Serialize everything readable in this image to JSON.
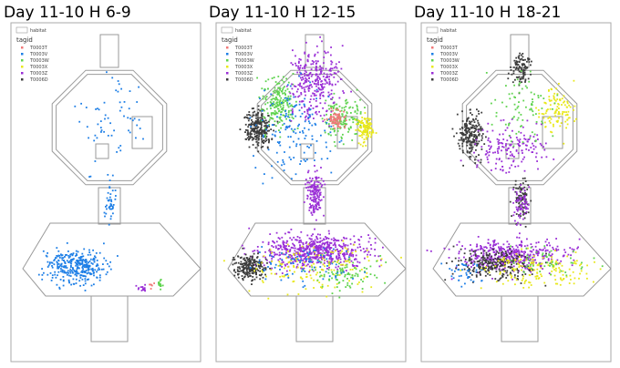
{
  "panels": [
    {
      "title": "Day 11-10 H 6-9"
    },
    {
      "title": "Day 11-10 H 12-15"
    },
    {
      "title": "Day 11-10 H 18-21"
    }
  ],
  "legend": {
    "box_label": "habitat",
    "title": "tagid",
    "entries": [
      {
        "name": "T0003T",
        "color": "#f07878"
      },
      {
        "name": "T0003V",
        "color": "#1e7fe6"
      },
      {
        "name": "T0003W",
        "color": "#5fd34f"
      },
      {
        "name": "T0003X",
        "color": "#e8e81c"
      },
      {
        "name": "T0003Z",
        "color": "#9a2fd6"
      },
      {
        "name": "T0006D",
        "color": "#3c3c3c"
      }
    ]
  }
}
